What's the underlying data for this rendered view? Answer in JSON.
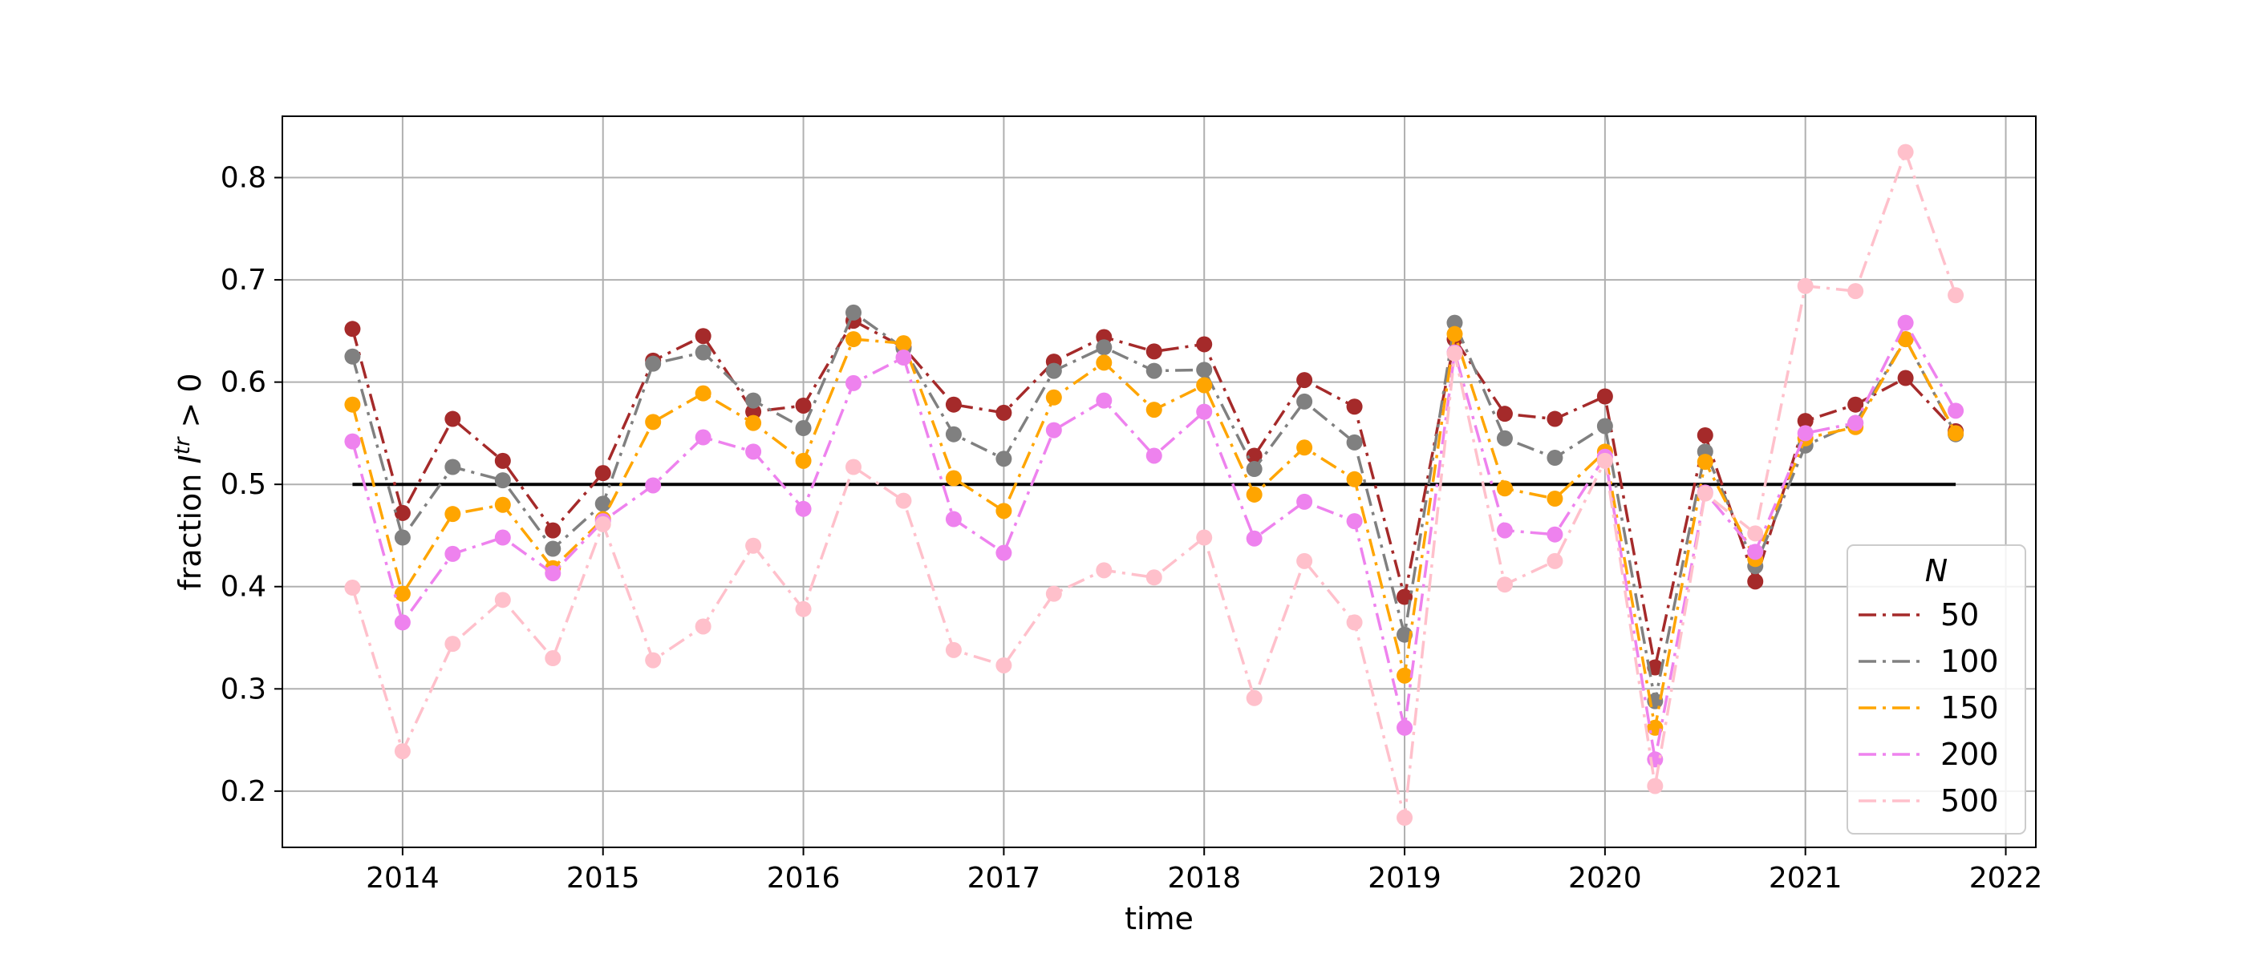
{
  "chart_data": {
    "type": "line",
    "xlabel": "time",
    "ylabel": "fraction",
    "ylabel_math": "I^tr > 0",
    "xlim": [
      2013.4,
      2022.15
    ],
    "ylim": [
      0.145,
      0.86
    ],
    "x_ticks": [
      2014,
      2015,
      2016,
      2017,
      2018,
      2019,
      2020,
      2021,
      2022
    ],
    "x_tick_labels": [
      "2014",
      "2015",
      "2016",
      "2017",
      "2018",
      "2019",
      "2020",
      "2021",
      "2022"
    ],
    "y_ticks": [
      0.2,
      0.3,
      0.4,
      0.5,
      0.6,
      0.7,
      0.8
    ],
    "y_tick_labels": [
      "0.2",
      "0.3",
      "0.4",
      "0.5",
      "0.6",
      "0.7",
      "0.8"
    ],
    "grid": true,
    "legend_title": "N",
    "legend_position": "lower-right",
    "reference_line": {
      "y": 0.5,
      "x_start": 2013.75,
      "x_end": 2021.75,
      "color": "#000000"
    },
    "x": [
      2013.75,
      2014.0,
      2014.25,
      2014.5,
      2014.75,
      2015.0,
      2015.25,
      2015.5,
      2015.75,
      2016.0,
      2016.25,
      2016.5,
      2016.75,
      2017.0,
      2017.25,
      2017.5,
      2017.75,
      2018.0,
      2018.25,
      2018.5,
      2018.75,
      2019.0,
      2019.25,
      2019.5,
      2019.75,
      2020.0,
      2020.25,
      2020.5,
      2020.75,
      2021.0,
      2021.25,
      2021.5,
      2021.75
    ],
    "series": [
      {
        "name": "50",
        "color": "#a52a2a",
        "values": [
          0.652,
          0.472,
          0.564,
          0.523,
          0.455,
          0.511,
          0.621,
          0.645,
          0.571,
          0.577,
          0.66,
          0.634,
          0.578,
          0.57,
          0.62,
          0.644,
          0.63,
          0.637,
          0.528,
          0.602,
          0.576,
          0.39,
          0.642,
          0.569,
          0.564,
          0.586,
          0.321,
          0.548,
          0.405,
          0.562,
          0.578,
          0.604,
          0.552
        ]
      },
      {
        "name": "100",
        "color": "#808080",
        "values": [
          0.625,
          0.448,
          0.517,
          0.504,
          0.437,
          0.481,
          0.618,
          0.629,
          0.582,
          0.555,
          0.668,
          0.633,
          0.549,
          0.525,
          0.611,
          0.634,
          0.611,
          0.612,
          0.515,
          0.581,
          0.541,
          0.353,
          0.658,
          0.545,
          0.526,
          0.557,
          0.288,
          0.532,
          0.42,
          0.538,
          0.56,
          0.642,
          0.549
        ]
      },
      {
        "name": "150",
        "color": "#ffa500",
        "values": [
          0.578,
          0.393,
          0.471,
          0.48,
          0.418,
          0.466,
          0.561,
          0.589,
          0.56,
          0.523,
          0.642,
          0.638,
          0.506,
          0.474,
          0.585,
          0.619,
          0.573,
          0.597,
          0.49,
          0.536,
          0.505,
          0.313,
          0.647,
          0.496,
          0.486,
          0.532,
          0.262,
          0.522,
          0.427,
          0.545,
          0.556,
          0.642,
          0.55
        ]
      },
      {
        "name": "200",
        "color": "#ee82ee",
        "values": [
          0.542,
          0.365,
          0.432,
          0.448,
          0.413,
          0.464,
          0.499,
          0.546,
          0.532,
          0.476,
          0.599,
          0.624,
          0.466,
          0.433,
          0.553,
          0.582,
          0.528,
          0.571,
          0.447,
          0.483,
          0.464,
          0.262,
          0.629,
          0.455,
          0.451,
          0.527,
          0.231,
          0.492,
          0.434,
          0.55,
          0.56,
          0.658,
          0.572
        ]
      },
      {
        "name": "500",
        "color": "#ffc0cb",
        "values": [
          0.399,
          0.239,
          0.344,
          0.387,
          0.33,
          0.461,
          0.328,
          0.361,
          0.44,
          0.378,
          0.517,
          0.484,
          0.338,
          0.323,
          0.393,
          0.416,
          0.409,
          0.448,
          0.291,
          0.425,
          0.365,
          0.174,
          0.628,
          0.402,
          0.425,
          0.523,
          0.205,
          0.491,
          0.452,
          0.694,
          0.689,
          0.825,
          0.685
        ]
      }
    ]
  }
}
